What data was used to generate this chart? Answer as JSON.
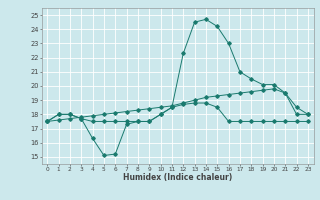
{
  "title": "",
  "xlabel": "Humidex (Indice chaleur)",
  "bg_color": "#cce8ec",
  "grid_color": "#ffffff",
  "line_color": "#1a7a6e",
  "xlim": [
    -0.5,
    23.5
  ],
  "ylim": [
    14.5,
    25.5
  ],
  "xticks": [
    0,
    1,
    2,
    3,
    4,
    5,
    6,
    7,
    8,
    9,
    10,
    11,
    12,
    13,
    14,
    15,
    16,
    17,
    18,
    19,
    20,
    21,
    22,
    23
  ],
  "yticks": [
    15,
    16,
    17,
    18,
    19,
    20,
    21,
    22,
    23,
    24,
    25
  ],
  "line1_x": [
    0,
    1,
    2,
    3,
    4,
    5,
    6,
    7,
    8,
    9,
    10,
    11,
    12,
    13,
    14,
    15,
    16,
    17,
    18,
    19,
    20,
    21,
    22,
    23
  ],
  "line1_y": [
    17.5,
    18.0,
    18.0,
    17.7,
    17.5,
    17.5,
    17.5,
    17.5,
    17.5,
    17.5,
    18.0,
    18.5,
    22.3,
    24.5,
    24.7,
    24.2,
    23.0,
    21.0,
    20.5,
    20.1,
    20.1,
    19.5,
    18.0,
    18.0
  ],
  "line2_x": [
    0,
    1,
    2,
    3,
    4,
    5,
    6,
    7,
    8,
    9,
    10,
    11,
    12,
    13,
    14,
    15,
    16,
    17,
    18,
    19,
    20,
    21,
    22,
    23
  ],
  "line2_y": [
    17.5,
    18.0,
    18.0,
    17.7,
    16.3,
    15.1,
    15.2,
    17.3,
    17.5,
    17.5,
    18.0,
    18.5,
    18.7,
    18.8,
    18.8,
    18.5,
    17.5,
    17.5,
    17.5,
    17.5,
    17.5,
    17.5,
    17.5,
    17.5
  ],
  "line3_x": [
    0,
    1,
    2,
    3,
    4,
    5,
    6,
    7,
    8,
    9,
    10,
    11,
    12,
    13,
    14,
    15,
    16,
    17,
    18,
    19,
    20,
    21,
    22,
    23
  ],
  "line3_y": [
    17.5,
    17.6,
    17.7,
    17.8,
    17.9,
    18.0,
    18.1,
    18.2,
    18.3,
    18.4,
    18.5,
    18.6,
    18.8,
    19.0,
    19.2,
    19.3,
    19.4,
    19.5,
    19.6,
    19.7,
    19.8,
    19.5,
    18.5,
    18.0
  ],
  "tick_color": "#444444",
  "spine_color": "#888888"
}
